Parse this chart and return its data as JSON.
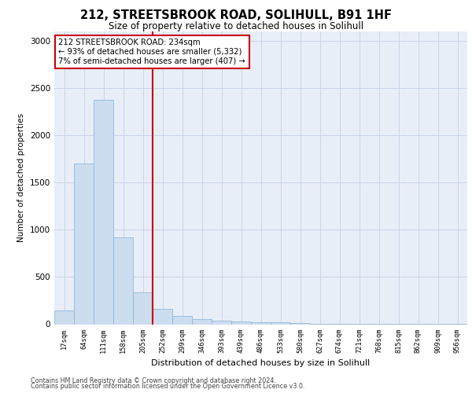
{
  "title_line1": "212, STREETSBROOK ROAD, SOLIHULL, B91 1HF",
  "title_line2": "Size of property relative to detached houses in Solihull",
  "xlabel": "Distribution of detached houses by size in Solihull",
  "ylabel": "Number of detached properties",
  "footnote1": "Contains HM Land Registry data © Crown copyright and database right 2024.",
  "footnote2": "Contains public sector information licensed under the Open Government Licence v3.0.",
  "annotation_line1": "212 STREETSBROOK ROAD: 234sqm",
  "annotation_line2": "← 93% of detached houses are smaller (5,332)",
  "annotation_line3": "7% of semi-detached houses are larger (407) →",
  "bar_labels": [
    "17sqm",
    "64sqm",
    "111sqm",
    "158sqm",
    "205sqm",
    "252sqm",
    "299sqm",
    "346sqm",
    "393sqm",
    "439sqm",
    "486sqm",
    "533sqm",
    "580sqm",
    "627sqm",
    "674sqm",
    "721sqm",
    "768sqm",
    "815sqm",
    "862sqm",
    "909sqm",
    "956sqm"
  ],
  "bar_values": [
    145,
    1700,
    2380,
    920,
    340,
    160,
    85,
    50,
    35,
    25,
    20,
    20,
    10,
    8,
    5,
    5,
    3,
    3,
    2,
    2,
    2
  ],
  "bar_color": "#ccddf0",
  "bar_edge_color": "#90b8d8",
  "redline_color": "#cc0000",
  "annotation_box_color": "#ffffff",
  "annotation_box_edge": "#cc0000",
  "grid_color": "#c8d4e8",
  "background_color": "#e8eef8",
  "ylim": [
    0,
    3100
  ],
  "yticks": [
    0,
    500,
    1000,
    1500,
    2000,
    2500,
    3000
  ]
}
